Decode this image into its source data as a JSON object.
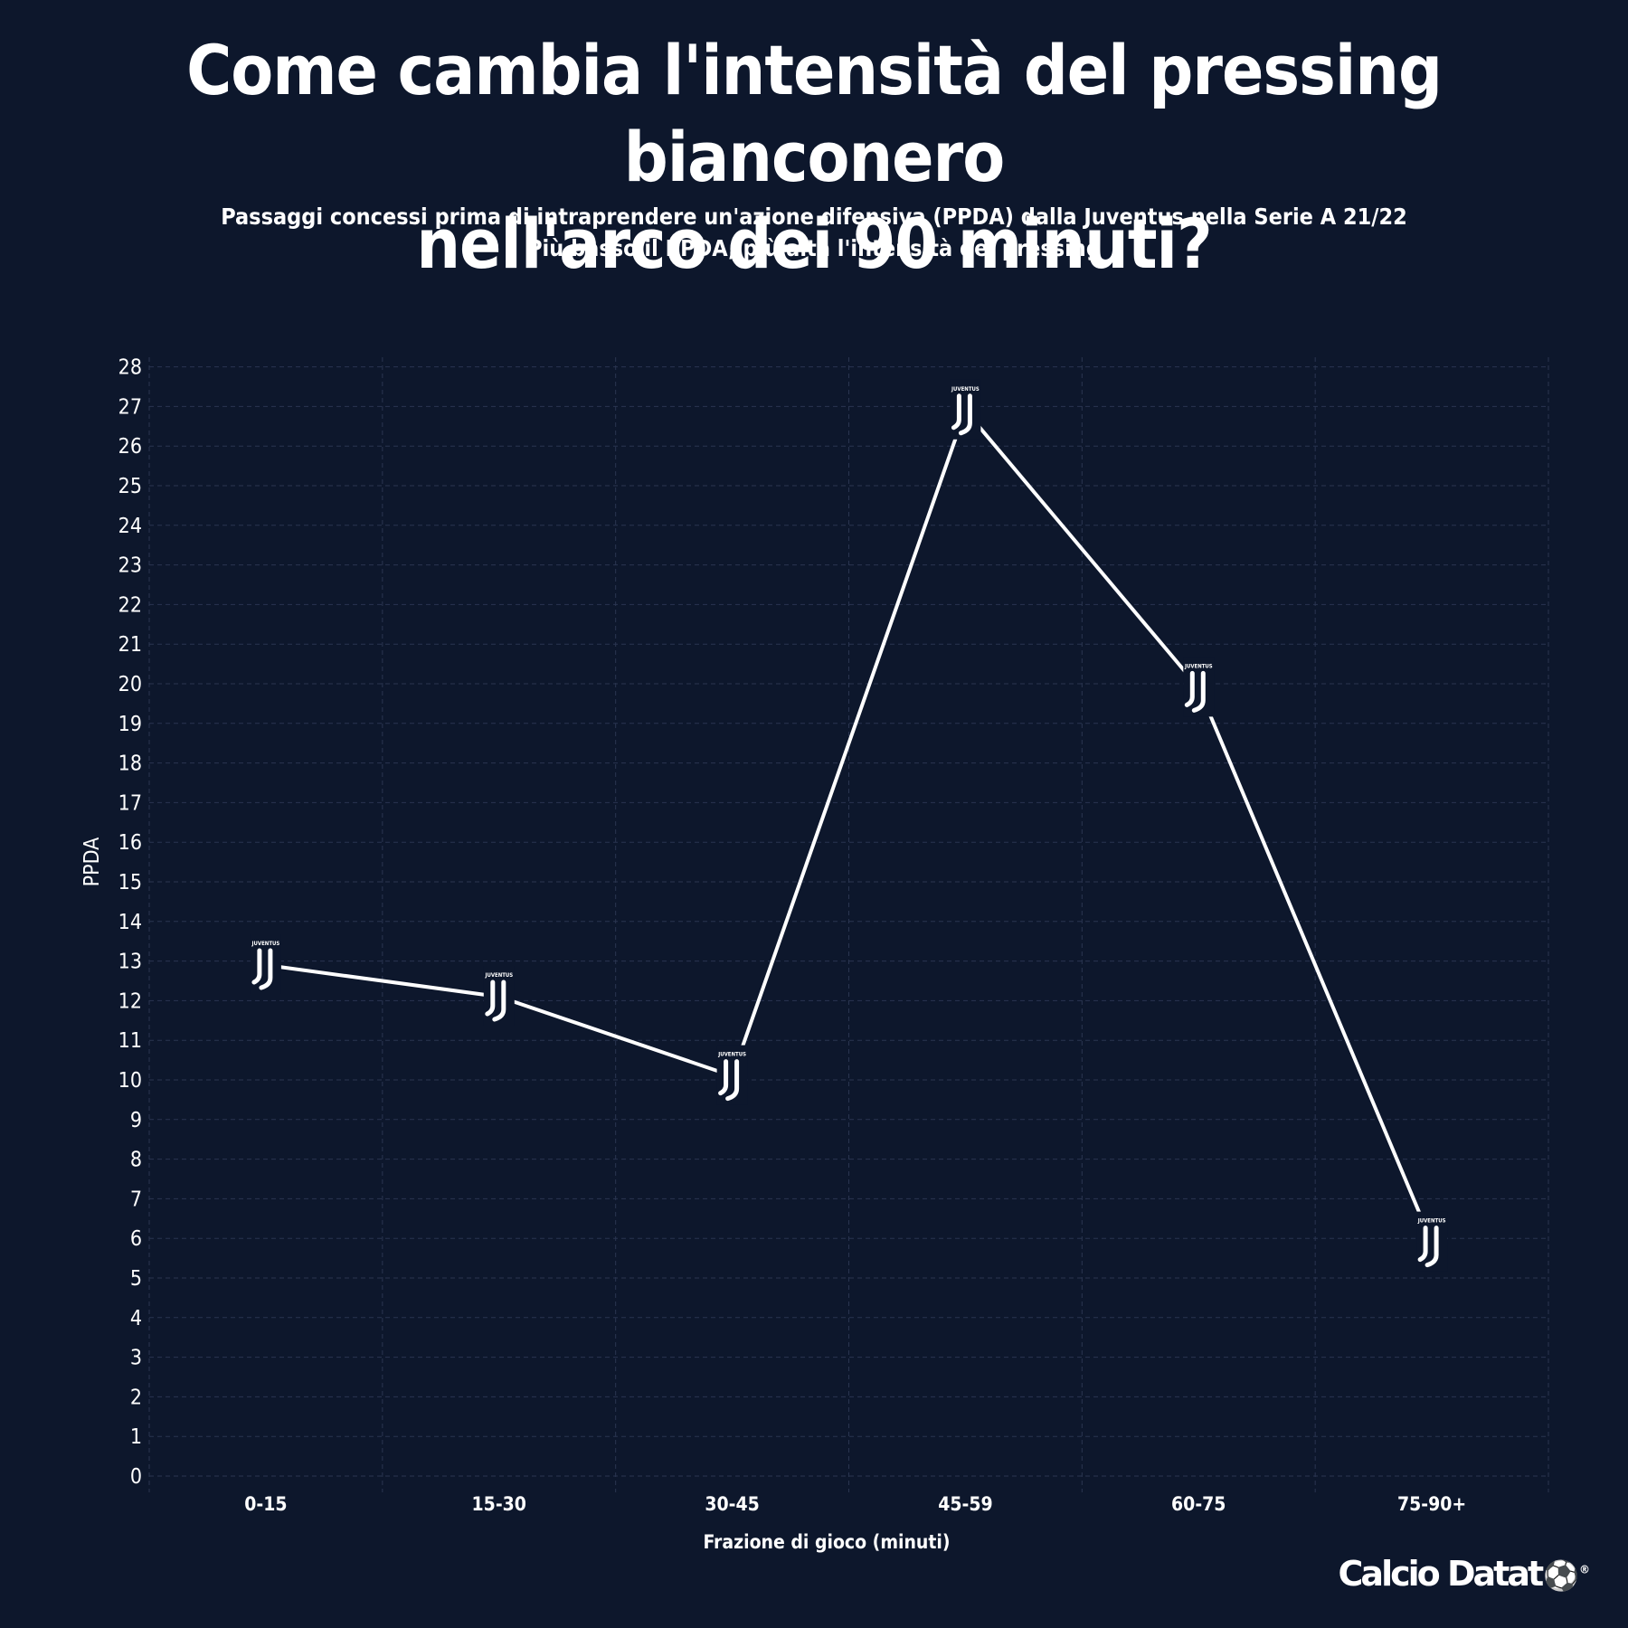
{
  "title_lines": [
    "Come cambia l'intensità del pressing bianconero",
    "nell'arco dei 90 minuti?"
  ],
  "subtitle_lines": [
    "Passaggi concessi prima di intraprendere un'azione difensiva (PPDA) dalla Juventus nella Serie A 21/22",
    "Più basso il PPDA, più alta l'intensità del pressing"
  ],
  "brand": {
    "text": "Calcio Datat",
    "ball_icon": "soccer-ball-icon",
    "registered_mark": "®"
  },
  "marker": {
    "icon": "juventus-logo-icon",
    "wordmark": "JUVENTUS"
  },
  "colors": {
    "background": "#0d172c",
    "line": "#ffffff",
    "text": "#ffffff",
    "grid": "#2a3550"
  },
  "chart_data": {
    "type": "line",
    "xlabel": "Frazione di gioco (minuti)",
    "ylabel": "PPDA",
    "categories": [
      "0-15",
      "15-30",
      "30-45",
      "45-59",
      "60-75",
      "75-90+"
    ],
    "values": [
      12.9,
      12.1,
      10.1,
      26.9,
      19.9,
      5.9
    ],
    "ylim": [
      0,
      28
    ],
    "yticks": [
      0,
      1,
      2,
      3,
      4,
      5,
      6,
      7,
      8,
      9,
      10,
      11,
      12,
      13,
      14,
      15,
      16,
      17,
      18,
      19,
      20,
      21,
      22,
      23,
      24,
      25,
      26,
      27,
      28
    ],
    "grid": true
  }
}
